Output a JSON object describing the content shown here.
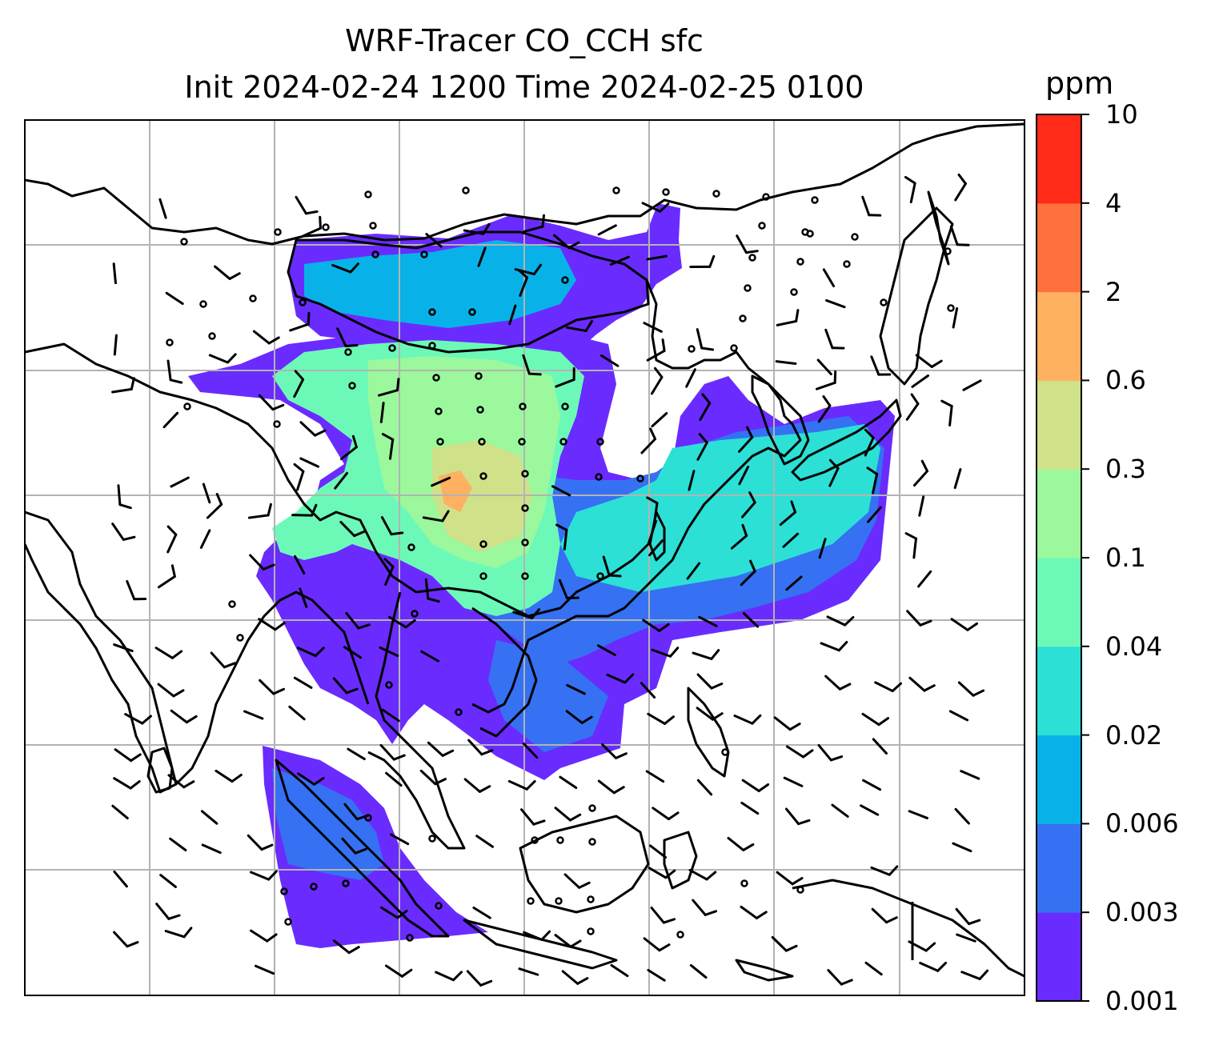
{
  "title": "WRF-Tracer CO_CCH sfc",
  "subtitle": "Init 2024-02-24 1200 Time 2024-02-25 0100",
  "colorbar": {
    "unit": "ppm",
    "labels": [
      "0.001",
      "0.003",
      "0.006",
      "0.02",
      "0.04",
      "0.1",
      "0.3",
      "0.6",
      "2",
      "4",
      "10"
    ],
    "colors": [
      "#6a2bff",
      "#3571f2",
      "#08b2e8",
      "#2ce0d6",
      "#6cf9b8",
      "#9bf89c",
      "#cfe189",
      "#ffb060",
      "#ff703c",
      "#ff2a18"
    ]
  },
  "map": {
    "gridlines": true,
    "projection": "lat-lon",
    "wind_barbs": true
  },
  "chart_data": {
    "type": "heatmap",
    "title": "WRF-Tracer CO_CCH sfc",
    "subtitle": "Init 2024-02-24 1200 Time 2024-02-25 0100",
    "colorbar_label": "ppm",
    "colorbar_levels": [
      0.001,
      0.003,
      0.006,
      0.02,
      0.04,
      0.1,
      0.3,
      0.6,
      2,
      4,
      10
    ]
  }
}
